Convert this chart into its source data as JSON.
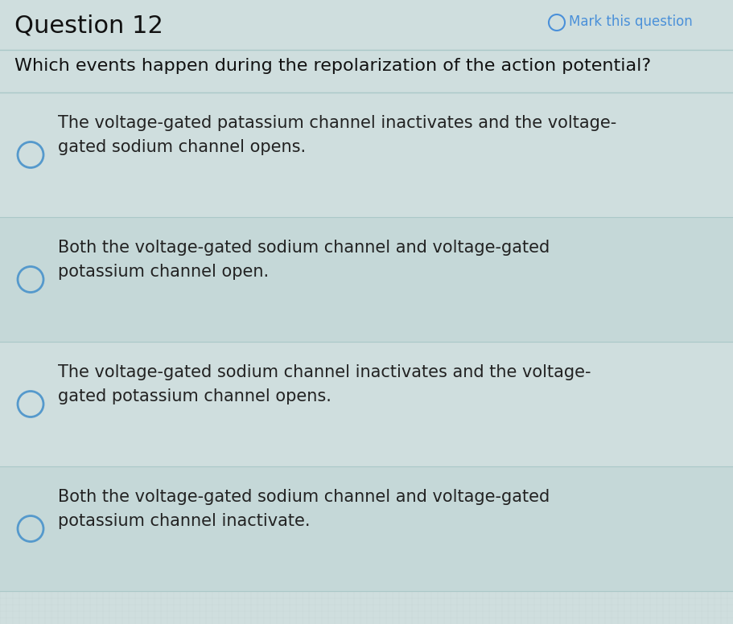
{
  "bg_color": "#cfdede",
  "question_number": "Question 12",
  "mark_text": "Mark this question",
  "question_text": "Which events happen during the repolarization of the action potential?",
  "options": [
    "The voltage-gated patassium channel inactivates and the voltage-\ngated sodium channel opens.",
    "Both the voltage-gated sodium channel and voltage-gated\npotassium channel open.",
    "The voltage-gated sodium channel inactivates and the voltage-\ngated potassium channel opens.",
    "Both the voltage-gated sodium channel and voltage-gated\npotassium channel inactivate."
  ],
  "question_num_fontsize": 22,
  "question_text_fontsize": 16,
  "option_fontsize": 15,
  "mark_color": "#4a90d9",
  "question_num_color": "#111111",
  "question_text_color": "#111111",
  "option_text_color": "#222222",
  "circle_edge_color": "#5599cc",
  "divider_color": "#aac8c8",
  "header_bg": "#cfdede",
  "option_bg_even": "#cfdede",
  "option_bg_odd": "#c5d8d8",
  "grid_color": "#b8cece",
  "grid_alpha": 0.5
}
